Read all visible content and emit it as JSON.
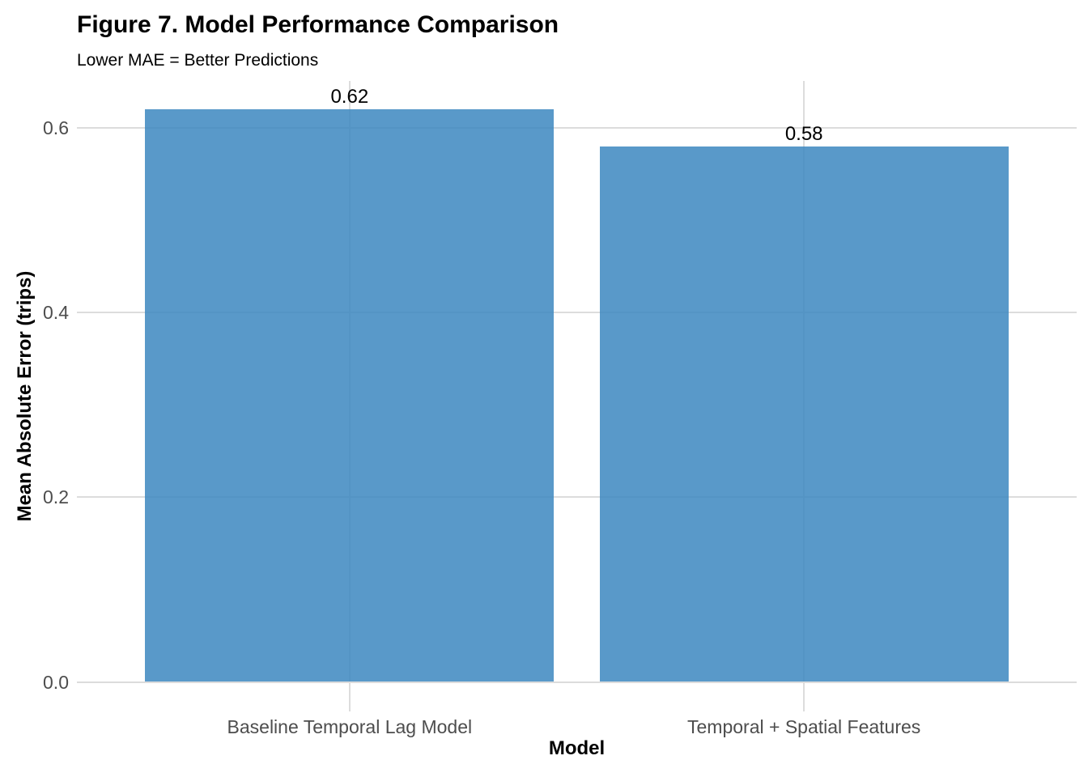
{
  "chart_data": {
    "type": "bar",
    "title": "Figure 7. Model Performance Comparison",
    "subtitle": "Lower MAE = Better Predictions",
    "xlabel": "Model",
    "ylabel": "Mean Absolute Error (trips)",
    "categories": [
      "Baseline Temporal Lag Model",
      "Temporal + Spatial Features"
    ],
    "values": [
      0.62,
      0.58
    ],
    "bar_labels": [
      "0.62",
      "0.58"
    ],
    "yticks": [
      0.0,
      0.2,
      0.4,
      0.6
    ],
    "ytick_labels": [
      "0.0",
      "0.2",
      "0.4",
      "0.6"
    ],
    "ylim": [
      -0.032,
      0.651
    ],
    "grid": true,
    "legend": "none",
    "colors": {
      "bar_fill": "#3C87BF",
      "bar_alpha": 0.85,
      "gridline": "#dcdcdc",
      "tick_text": "#4d4d4d",
      "title_text": "#000000"
    }
  }
}
